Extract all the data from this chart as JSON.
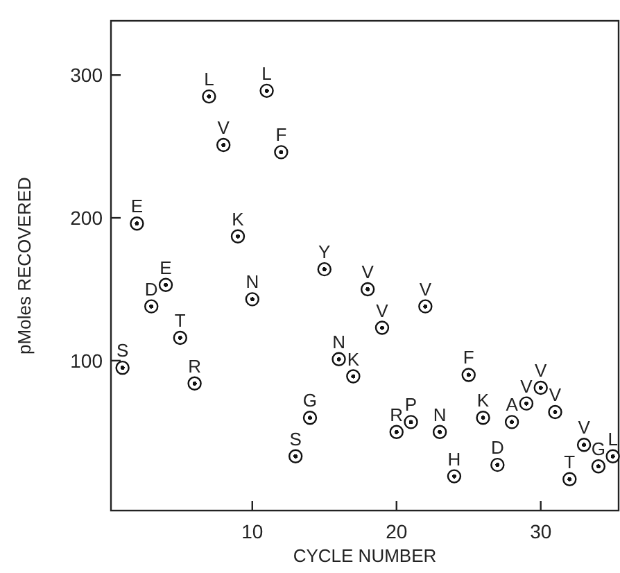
{
  "chart_data": {
    "type": "scatter",
    "xlabel": "CYCLE NUMBER",
    "ylabel": "pMoles RECOVERED",
    "xlim": [
      0.2,
      35.4
    ],
    "ylim": [
      -5,
      338
    ],
    "xticks": [
      10,
      20,
      30
    ],
    "yticks": [
      100,
      200,
      300
    ],
    "grid": false,
    "marker": "circle",
    "color": "#111111",
    "x": [
      1,
      2,
      3,
      4,
      5,
      6,
      7,
      8,
      9,
      10,
      11,
      12,
      13,
      14,
      15,
      16,
      17,
      18,
      19,
      20,
      21,
      22,
      23,
      24,
      25,
      26,
      27,
      28,
      29,
      30,
      31,
      32,
      33,
      34,
      35
    ],
    "values": [
      95,
      196,
      138,
      153,
      116,
      84,
      285,
      251,
      187,
      143,
      289,
      246,
      33,
      60,
      164,
      101,
      89,
      150,
      123,
      50,
      57,
      138,
      50,
      19,
      90,
      60,
      27,
      57,
      70,
      81,
      64,
      17,
      41,
      26,
      33
    ],
    "annotations": [
      {
        "text": "S",
        "x": 1,
        "y": 95
      },
      {
        "text": "E",
        "x": 2,
        "y": 196
      },
      {
        "text": "D",
        "x": 3,
        "y": 138
      },
      {
        "text": "E",
        "x": 4,
        "y": 153
      },
      {
        "text": "T",
        "x": 5,
        "y": 116
      },
      {
        "text": "R",
        "x": 6,
        "y": 84
      },
      {
        "text": "L",
        "x": 7,
        "y": 285
      },
      {
        "text": "V",
        "x": 8,
        "y": 251
      },
      {
        "text": "K",
        "x": 9,
        "y": 187
      },
      {
        "text": "N",
        "x": 10,
        "y": 143
      },
      {
        "text": "L",
        "x": 11,
        "y": 289
      },
      {
        "text": "F",
        "x": 12,
        "y": 246
      },
      {
        "text": "S",
        "x": 13,
        "y": 33
      },
      {
        "text": "G",
        "x": 14,
        "y": 60
      },
      {
        "text": "Y",
        "x": 15,
        "y": 164
      },
      {
        "text": "N",
        "x": 16,
        "y": 101
      },
      {
        "text": "K",
        "x": 17,
        "y": 89
      },
      {
        "text": "V",
        "x": 18,
        "y": 150
      },
      {
        "text": "V",
        "x": 19,
        "y": 123
      },
      {
        "text": "R",
        "x": 20,
        "y": 50
      },
      {
        "text": "P",
        "x": 21,
        "y": 57
      },
      {
        "text": "V",
        "x": 22,
        "y": 138
      },
      {
        "text": "N",
        "x": 23,
        "y": 50
      },
      {
        "text": "H",
        "x": 24,
        "y": 19
      },
      {
        "text": "F",
        "x": 25,
        "y": 90
      },
      {
        "text": "K",
        "x": 26,
        "y": 60
      },
      {
        "text": "D",
        "x": 27,
        "y": 27
      },
      {
        "text": "A",
        "x": 28,
        "y": 57
      },
      {
        "text": "V",
        "x": 29,
        "y": 70
      },
      {
        "text": "V",
        "x": 30,
        "y": 81
      },
      {
        "text": "V",
        "x": 31,
        "y": 64
      },
      {
        "text": "T",
        "x": 32,
        "y": 17
      },
      {
        "text": "V",
        "x": 33,
        "y": 41
      },
      {
        "text": "G",
        "x": 34,
        "y": 26
      },
      {
        "text": "L",
        "x": 35,
        "y": 33
      }
    ]
  }
}
